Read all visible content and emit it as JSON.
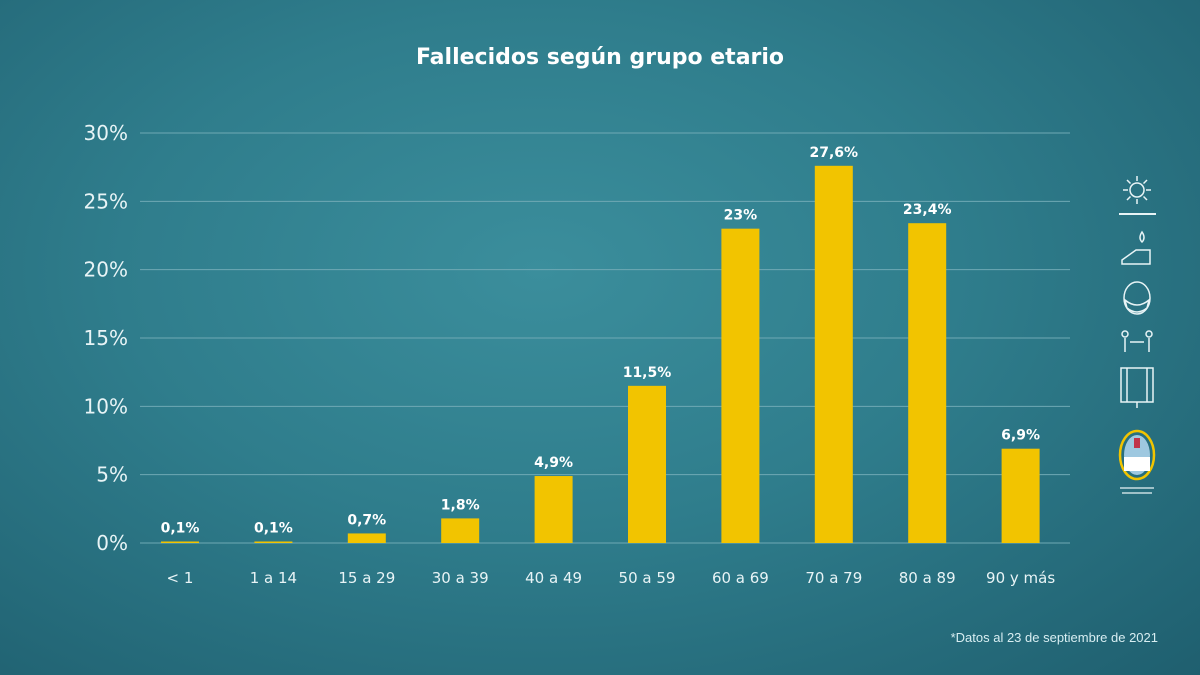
{
  "title": "Fallecidos según grupo etario",
  "footnote": "*Datos al 23 de septiembre de 2021",
  "colors": {
    "background": "#2f7d8c",
    "bar": "#f2c400",
    "grid": "#6fa9b4",
    "text": "#ffffff"
  },
  "sidebar": {
    "icons": [
      "virus-icon",
      "hand-washing-icon",
      "face-mask-icon",
      "social-distance-icon",
      "window-ventilation-icon",
      "provincial-seal-icon"
    ]
  },
  "chart_data": {
    "type": "bar",
    "title": "Fallecidos según grupo etario",
    "xlabel": "",
    "ylabel": "",
    "ylim": [
      0,
      30
    ],
    "grid": true,
    "yticks": [
      "0%",
      "5%",
      "10%",
      "15%",
      "20%",
      "25%",
      "30%"
    ],
    "categories": [
      "< 1",
      "1 a 14",
      "15 a 29",
      "30 a 39",
      "40 a 49",
      "50 a 59",
      "60 a 69",
      "70 a 79",
      "80 a 89",
      "90 y más"
    ],
    "values": [
      0.1,
      0.1,
      0.7,
      1.8,
      4.9,
      11.5,
      23,
      27.6,
      23.4,
      6.9
    ],
    "data_labels": [
      "0,1%",
      "0,1%",
      "0,7%",
      "1,8%",
      "4,9%",
      "11,5%",
      "23%",
      "27,6%",
      "23,4%",
      "6,9%"
    ]
  }
}
